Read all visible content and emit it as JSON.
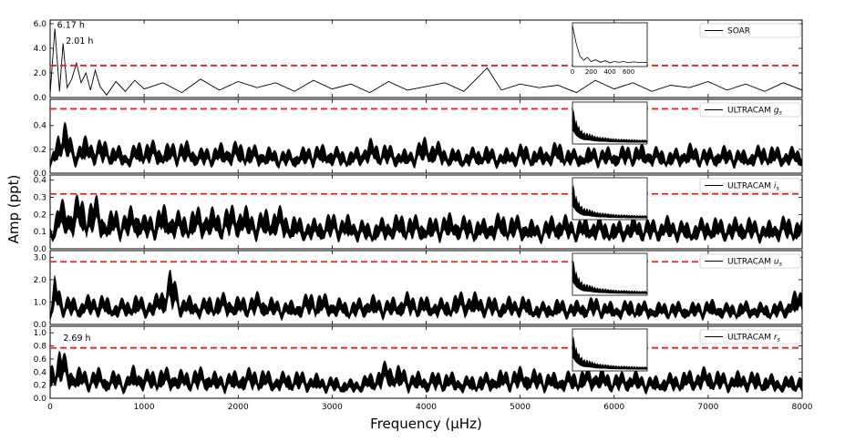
{
  "figure": {
    "ylabel": "Amp (ppt)",
    "xlabel": "Frequency (μHz)"
  },
  "chart_data": {
    "type": "line",
    "xlim": [
      0,
      8000
    ],
    "x_ticks": [
      0,
      1000,
      2000,
      3000,
      4000,
      5000,
      6000,
      7000,
      8000
    ],
    "x_tick_labels": [
      "0",
      "1000",
      "2000",
      "3000",
      "4000",
      "5000",
      "6000",
      "7000",
      "8000"
    ],
    "panels": [
      {
        "name": "SOAR",
        "legend_main": "SOAR",
        "legend_sub": "",
        "ylim": [
          0,
          6.3
        ],
        "y_ticks": [
          "0.0",
          "2.0",
          "4.0",
          "6.0"
        ],
        "y_tick_values": [
          0,
          2,
          4,
          6
        ],
        "threshold": 2.6,
        "style": "line",
        "annotations": [
          {
            "text": "6.17 h",
            "x": 45,
            "y": 5.9
          },
          {
            "text": "2.01 h",
            "x": 138,
            "y": 4.6
          }
        ],
        "series": {
          "x": [
            0,
            50,
            100,
            138,
            180,
            230,
            280,
            330,
            380,
            430,
            480,
            530,
            600,
            700,
            800,
            900,
            1000,
            1200,
            1400,
            1600,
            1800,
            2000,
            2200,
            2400,
            2600,
            2800,
            3000,
            3200,
            3400,
            3600,
            3800,
            4000,
            4200,
            4400,
            4650,
            4800,
            5000,
            5200,
            5400,
            5600,
            5800,
            6000,
            6200,
            6400,
            6600,
            6800,
            7000,
            7200,
            7400,
            7600,
            7800,
            8000
          ],
          "y": [
            0.3,
            5.6,
            0.5,
            4.4,
            0.8,
            1.5,
            2.8,
            1.2,
            2.0,
            0.6,
            2.2,
            0.9,
            0.2,
            1.3,
            0.5,
            1.4,
            0.7,
            1.2,
            0.4,
            1.5,
            0.6,
            1.3,
            0.8,
            1.2,
            0.5,
            1.4,
            0.7,
            1.1,
            0.4,
            1.3,
            0.6,
            0.9,
            1.2,
            0.5,
            2.4,
            0.6,
            1.1,
            0.8,
            1.0,
            0.4,
            1.4,
            0.7,
            1.2,
            0.5,
            1.0,
            0.8,
            1.3,
            0.6,
            1.1,
            0.5,
            1.2,
            0.6
          ]
        },
        "inset": {
          "x_ticks": [
            "0",
            "200",
            "400",
            "600"
          ],
          "x_range": [
            0,
            800
          ],
          "x": [
            0,
            40,
            80,
            120,
            160,
            200,
            250,
            300,
            350,
            400,
            450,
            500,
            550,
            600,
            650,
            700,
            800
          ],
          "y": [
            0.98,
            0.55,
            0.25,
            0.15,
            0.22,
            0.12,
            0.16,
            0.1,
            0.14,
            0.09,
            0.12,
            0.1,
            0.12,
            0.09,
            0.11,
            0.1,
            0.1
          ]
        }
      },
      {
        "name": "ULTRACAM gs",
        "legend_main": "ULTRACAM ",
        "legend_sub": "g",
        "ylim": [
          0,
          0.62
        ],
        "y_ticks": [
          "0.0",
          "0.2",
          "0.4"
        ],
        "y_tick_values": [
          0,
          0.2,
          0.4
        ],
        "threshold": 0.54,
        "style": "band",
        "annotations": [],
        "series": {
          "x": [
            0,
            100,
            150,
            250,
            350,
            500,
            650,
            800,
            1000,
            1200,
            1400,
            1600,
            1800,
            2000,
            2200,
            2400,
            2600,
            2800,
            3000,
            3200,
            3400,
            3600,
            3800,
            4000,
            4200,
            4400,
            4600,
            4800,
            5000,
            5200,
            5400,
            5600,
            5800,
            6000,
            6200,
            6400,
            6600,
            6800,
            7000,
            7200,
            7400,
            7600,
            7800,
            8000
          ],
          "y": [
            0.08,
            0.47,
            0.48,
            0.25,
            0.32,
            0.3,
            0.28,
            0.2,
            0.31,
            0.25,
            0.3,
            0.22,
            0.26,
            0.28,
            0.24,
            0.22,
            0.2,
            0.26,
            0.24,
            0.2,
            0.3,
            0.25,
            0.2,
            0.33,
            0.24,
            0.2,
            0.25,
            0.2,
            0.26,
            0.22,
            0.28,
            0.2,
            0.24,
            0.22,
            0.26,
            0.24,
            0.2,
            0.26,
            0.22,
            0.24,
            0.2,
            0.26,
            0.22,
            0.24
          ]
        }
      },
      {
        "name": "ULTRACAM is",
        "legend_main": "ULTRACAM ",
        "legend_sub": "i",
        "ylim": [
          0,
          0.43
        ],
        "y_ticks": [
          "0.0",
          "0.1",
          "0.2",
          "0.3",
          "0.4"
        ],
        "y_tick_values": [
          0,
          0.1,
          0.2,
          0.3,
          0.4
        ],
        "threshold": 0.32,
        "style": "band",
        "annotations": [],
        "series": {
          "x": [
            0,
            100,
            200,
            300,
            400,
            500,
            600,
            700,
            800,
            900,
            1000,
            1200,
            1400,
            1600,
            1800,
            2000,
            2200,
            2400,
            2600,
            2800,
            3000,
            3200,
            3400,
            3600,
            3800,
            4000,
            4200,
            4400,
            4600,
            4800,
            5000,
            5200,
            5400,
            5600,
            5800,
            6000,
            6200,
            6400,
            6600,
            6800,
            7000,
            7200,
            7400,
            7600,
            7800,
            8000
          ],
          "y": [
            0.15,
            0.3,
            0.28,
            0.33,
            0.3,
            0.32,
            0.2,
            0.26,
            0.22,
            0.29,
            0.2,
            0.27,
            0.22,
            0.26,
            0.24,
            0.28,
            0.22,
            0.27,
            0.2,
            0.18,
            0.22,
            0.2,
            0.16,
            0.2,
            0.22,
            0.18,
            0.22,
            0.2,
            0.18,
            0.22,
            0.2,
            0.16,
            0.22,
            0.18,
            0.2,
            0.16,
            0.2,
            0.18,
            0.2,
            0.16,
            0.2,
            0.18,
            0.2,
            0.16,
            0.2,
            0.18
          ]
        }
      },
      {
        "name": "ULTRACAM us",
        "legend_main": "ULTRACAM ",
        "legend_sub": "u",
        "ylim": [
          0,
          3.3
        ],
        "y_ticks": [
          "0.0",
          "1.0",
          "2.0",
          "3.0"
        ],
        "y_tick_values": [
          0,
          1,
          2,
          3
        ],
        "threshold": 2.8,
        "style": "band",
        "annotations": [],
        "series": {
          "x": [
            0,
            50,
            150,
            300,
            500,
            700,
            900,
            1100,
            1280,
            1400,
            1600,
            1800,
            2000,
            2200,
            2400,
            2600,
            2800,
            3000,
            3200,
            3400,
            3600,
            3800,
            4000,
            4200,
            4400,
            4600,
            4800,
            5000,
            5200,
            5400,
            5600,
            5800,
            6000,
            6200,
            6400,
            6600,
            6800,
            7000,
            7200,
            7400,
            7600,
            7800,
            8000
          ],
          "y": [
            0.5,
            2.3,
            1.4,
            1.2,
            1.5,
            1.1,
            1.4,
            1.2,
            2.6,
            1.4,
            1.2,
            1.5,
            1.3,
            1.5,
            1.2,
            1.1,
            1.6,
            1.3,
            1.1,
            1.4,
            1.2,
            1.5,
            1.3,
            1.2,
            1.6,
            1.4,
            1.2,
            1.4,
            1.0,
            1.2,
            1.1,
            1.3,
            1.0,
            1.2,
            1.0,
            1.1,
            1.0,
            1.2,
            1.0,
            1.1,
            1.0,
            1.1,
            1.8
          ]
        }
      },
      {
        "name": "ULTRACAM rs",
        "legend_main": "ULTRACAM ",
        "legend_sub": "r",
        "ylim": [
          0,
          1.1
        ],
        "y_ticks": [
          "0.0",
          "0.2",
          "0.4",
          "0.6",
          "0.8",
          "1.0"
        ],
        "y_tick_values": [
          0,
          0.2,
          0.4,
          0.6,
          0.8,
          1.0
        ],
        "threshold": 0.77,
        "style": "band",
        "annotations": [
          {
            "text": "2.69 h",
            "x": 110,
            "y": 0.92
          }
        ],
        "series": {
          "x": [
            0,
            100,
            200,
            300,
            400,
            500,
            600,
            700,
            800,
            900,
            1000,
            1200,
            1400,
            1600,
            1800,
            2000,
            2200,
            2400,
            2600,
            2800,
            3000,
            3200,
            3400,
            3600,
            3800,
            4000,
            4200,
            4400,
            4600,
            4800,
            5000,
            5200,
            5400,
            5600,
            5800,
            6000,
            6200,
            6400,
            6600,
            6800,
            7000,
            7200,
            7400,
            7600,
            7800,
            8000
          ],
          "y": [
            0.5,
            0.88,
            0.55,
            0.5,
            0.45,
            0.5,
            0.4,
            0.45,
            0.35,
            0.55,
            0.45,
            0.5,
            0.45,
            0.5,
            0.4,
            0.45,
            0.5,
            0.4,
            0.45,
            0.4,
            0.35,
            0.3,
            0.4,
            0.62,
            0.45,
            0.4,
            0.45,
            0.35,
            0.4,
            0.45,
            0.5,
            0.45,
            0.4,
            0.45,
            0.5,
            0.4,
            0.45,
            0.35,
            0.4,
            0.45,
            0.5,
            0.4,
            0.45,
            0.4,
            0.35,
            0.4
          ]
        }
      }
    ],
    "insets": {
      "x_range": [
        0,
        800
      ],
      "x": [
        0,
        40,
        80,
        120,
        160,
        200,
        250,
        300,
        350,
        400,
        450,
        500,
        550,
        600,
        650,
        700,
        800
      ],
      "y": [
        0.98,
        0.6,
        0.4,
        0.3,
        0.28,
        0.25,
        0.2,
        0.18,
        0.17,
        0.15,
        0.14,
        0.13,
        0.13,
        0.12,
        0.12,
        0.11,
        0.11
      ]
    }
  }
}
